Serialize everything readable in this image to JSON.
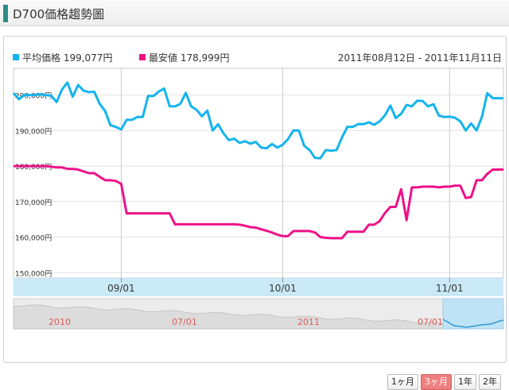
{
  "header": {
    "title": "D700価格趨勢圖"
  },
  "legend": {
    "avg_label": "平均価格 199,077円",
    "min_label": "最安値 178,999円",
    "date_range": "2011年08月12日 - 2011年11月11日"
  },
  "colors": {
    "avg": "#14b4ee",
    "min": "#ee1188",
    "nav_band": "#c9e9f7",
    "header_accent": "#2e8b8b",
    "nav_text": "#e05a5a"
  },
  "navigator": {
    "labels": [
      "2010",
      "07/01",
      "2011",
      "07/01"
    ]
  },
  "range_buttons": [
    {
      "label": "1ヶ月",
      "active": false
    },
    {
      "label": "3ヶ月",
      "active": true
    },
    {
      "label": "1年",
      "active": false
    },
    {
      "label": "2年",
      "active": false
    }
  ],
  "chart_data": {
    "type": "line",
    "x_start": "2011-08-12",
    "x_end": "2011-11-11",
    "xticks": [
      {
        "date": "2011-09-01",
        "label": "09/01"
      },
      {
        "date": "2011-10-01",
        "label": "10/01"
      },
      {
        "date": "2011-11-01",
        "label": "11/01"
      }
    ],
    "yticks": [
      150000,
      160000,
      170000,
      180000,
      190000,
      200000
    ],
    "ytick_labels": [
      "150,000円",
      "160,000円",
      "170,000円",
      "180,000円",
      "190,000円",
      "200,000円"
    ],
    "ylim": [
      148500,
      207500
    ],
    "grid": true,
    "series": [
      {
        "name": "平均価格",
        "x": [
          "2011-08-12",
          "2011-08-13",
          "2011-08-14",
          "2011-08-15",
          "2011-08-16",
          "2011-08-17",
          "2011-08-18",
          "2011-08-19",
          "2011-08-20",
          "2011-08-21",
          "2011-08-22",
          "2011-08-23",
          "2011-08-24",
          "2011-08-25",
          "2011-08-26",
          "2011-08-27",
          "2011-08-28",
          "2011-08-29",
          "2011-08-30",
          "2011-08-31",
          "2011-09-01",
          "2011-09-02",
          "2011-09-03",
          "2011-09-04",
          "2011-09-05",
          "2011-09-06",
          "2011-09-07",
          "2011-09-08",
          "2011-09-09",
          "2011-09-10",
          "2011-09-11",
          "2011-09-12",
          "2011-09-13",
          "2011-09-14",
          "2011-09-15",
          "2011-09-16",
          "2011-09-17",
          "2011-09-18",
          "2011-09-19",
          "2011-09-20",
          "2011-09-21",
          "2011-09-22",
          "2011-09-23",
          "2011-09-24",
          "2011-09-25",
          "2011-09-26",
          "2011-09-27",
          "2011-09-28",
          "2011-09-29",
          "2011-09-30",
          "2011-10-01",
          "2011-10-02",
          "2011-10-03",
          "2011-10-04",
          "2011-10-05",
          "2011-10-06",
          "2011-10-07",
          "2011-10-08",
          "2011-10-09",
          "2011-10-10",
          "2011-10-11",
          "2011-10-12",
          "2011-10-13",
          "2011-10-14",
          "2011-10-15",
          "2011-10-16",
          "2011-10-17",
          "2011-10-18",
          "2011-10-19",
          "2011-10-20",
          "2011-10-21",
          "2011-10-22",
          "2011-10-23",
          "2011-10-24",
          "2011-10-25",
          "2011-10-26",
          "2011-10-27",
          "2011-10-28",
          "2011-10-29",
          "2011-10-30",
          "2011-10-31",
          "2011-11-01",
          "2011-11-02",
          "2011-11-03",
          "2011-11-04",
          "2011-11-05",
          "2011-11-06",
          "2011-11-07",
          "2011-11-08",
          "2011-11-09",
          "2011-11-10",
          "2011-11-11"
        ],
        "values": [
          200500,
          198800,
          200000,
          200000,
          200000,
          200200,
          200000,
          199800,
          198000,
          201500,
          203500,
          199500,
          202800,
          201200,
          200800,
          200900,
          197500,
          195500,
          191500,
          191000,
          190300,
          193000,
          193000,
          193800,
          193800,
          199700,
          199700,
          201000,
          201800,
          196800,
          196800,
          197500,
          200600,
          196800,
          195800,
          194000,
          195600,
          190000,
          191800,
          189200,
          187300,
          187700,
          186500,
          187000,
          186300,
          186800,
          185200,
          185000,
          186200,
          185200,
          186000,
          187600,
          190000,
          190000,
          185700,
          184500,
          182300,
          182200,
          184500,
          184300,
          184500,
          188000,
          191000,
          191000,
          191800,
          191800,
          192300,
          191600,
          192600,
          194300,
          197000,
          193500,
          194700,
          197200,
          196800,
          198400,
          198300,
          196800,
          197400,
          194200,
          193800,
          193900,
          193600,
          192600,
          190000,
          192000,
          190000,
          193800,
          200500,
          199100,
          199100,
          199077
        ]
      },
      {
        "name": "最安値",
        "x": [
          "2011-08-12",
          "2011-08-13",
          "2011-08-14",
          "2011-08-15",
          "2011-08-16",
          "2011-08-17",
          "2011-08-18",
          "2011-08-19",
          "2011-08-20",
          "2011-08-21",
          "2011-08-22",
          "2011-08-23",
          "2011-08-24",
          "2011-08-25",
          "2011-08-26",
          "2011-08-27",
          "2011-08-28",
          "2011-08-29",
          "2011-08-30",
          "2011-08-31",
          "2011-09-01",
          "2011-09-02",
          "2011-09-03",
          "2011-09-04",
          "2011-09-05",
          "2011-09-06",
          "2011-09-07",
          "2011-09-08",
          "2011-09-09",
          "2011-09-10",
          "2011-09-11",
          "2011-09-12",
          "2011-09-13",
          "2011-09-14",
          "2011-09-15",
          "2011-09-16",
          "2011-09-17",
          "2011-09-18",
          "2011-09-19",
          "2011-09-20",
          "2011-09-21",
          "2011-09-22",
          "2011-09-23",
          "2011-09-24",
          "2011-09-25",
          "2011-09-26",
          "2011-09-27",
          "2011-09-28",
          "2011-09-29",
          "2011-09-30",
          "2011-10-01",
          "2011-10-02",
          "2011-10-03",
          "2011-10-04",
          "2011-10-05",
          "2011-10-06",
          "2011-10-07",
          "2011-10-08",
          "2011-10-09",
          "2011-10-10",
          "2011-10-11",
          "2011-10-12",
          "2011-10-13",
          "2011-10-14",
          "2011-10-15",
          "2011-10-16",
          "2011-10-17",
          "2011-10-18",
          "2011-10-19",
          "2011-10-20",
          "2011-10-21",
          "2011-10-22",
          "2011-10-23",
          "2011-10-24",
          "2011-10-25",
          "2011-10-26",
          "2011-10-27",
          "2011-10-28",
          "2011-10-29",
          "2011-10-30",
          "2011-10-31",
          "2011-11-01",
          "2011-11-02",
          "2011-11-03",
          "2011-11-04",
          "2011-11-05",
          "2011-11-06",
          "2011-11-07",
          "2011-11-08",
          "2011-11-09",
          "2011-11-10",
          "2011-11-11"
        ],
        "values": [
          180000,
          180000,
          180000,
          180000,
          180000,
          180000,
          180000,
          179800,
          179600,
          179600,
          179200,
          179200,
          179000,
          178500,
          178000,
          178000,
          177000,
          176000,
          176000,
          175800,
          175000,
          166700,
          166700,
          166700,
          166700,
          166700,
          166700,
          166700,
          166700,
          166700,
          163600,
          163600,
          163600,
          163600,
          163600,
          163600,
          163600,
          163600,
          163600,
          163600,
          163600,
          163600,
          163500,
          163200,
          162800,
          162700,
          162200,
          161800,
          161300,
          160700,
          160300,
          160300,
          161700,
          161700,
          161700,
          161700,
          161300,
          160000,
          159800,
          159700,
          159700,
          159700,
          161500,
          161500,
          161500,
          161500,
          163500,
          163500,
          164500,
          166800,
          168500,
          168500,
          173500,
          164800,
          174000,
          174000,
          174200,
          174200,
          174200,
          174000,
          174200,
          174200,
          174500,
          174500,
          171000,
          171300,
          176000,
          176000,
          177800,
          179000,
          179000,
          178999
        ]
      }
    ]
  }
}
